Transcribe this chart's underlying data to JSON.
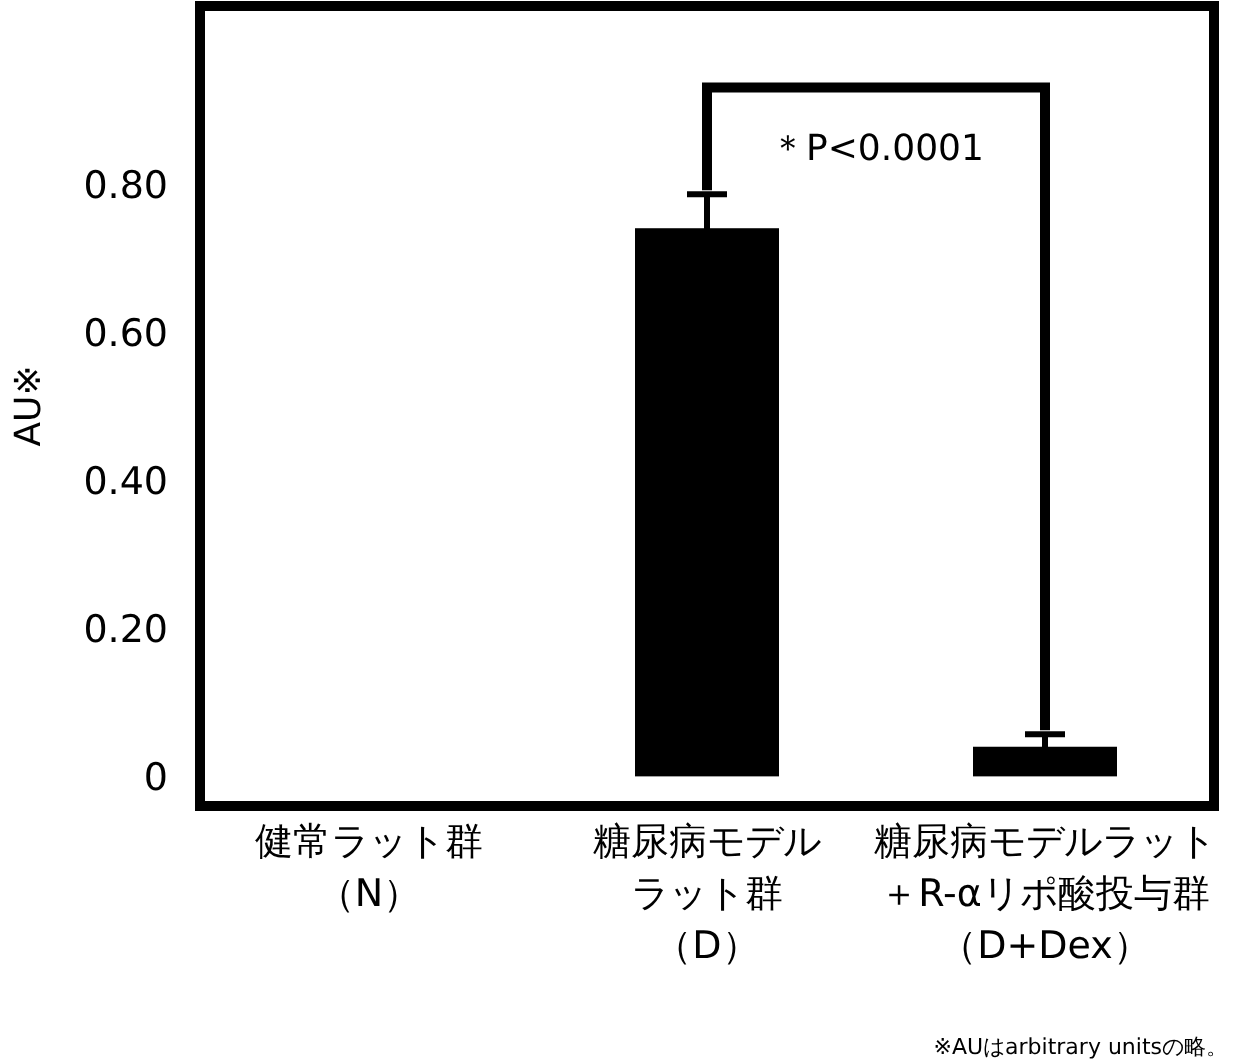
{
  "chart_data": {
    "type": "bar",
    "categories": [
      "健常ラット群（N）",
      "糖尿病モデルラット群（D）",
      "糖尿病モデルラット＋R-αリポ酸投与群（D+Dex）"
    ],
    "values": [
      0,
      0.74,
      0.04
    ],
    "errors": [
      null,
      0.046,
      0.017
    ],
    "color": "#000000",
    "ylabel": "AU※",
    "ylim": [
      -0.04,
      1.04
    ],
    "yticks": [
      0,
      {
        "value": 0.2,
        "label": "0.20"
      },
      {
        "value": 0.4,
        "label": "0.40"
      },
      {
        "value": 0.6,
        "label": "0.60"
      },
      {
        "value": 0.8,
        "label": "0.80"
      }
    ],
    "grid": false,
    "annotations": [
      "＊P<0.0001",
      "※AUはarbitrary unitsの略。"
    ]
  }
}
